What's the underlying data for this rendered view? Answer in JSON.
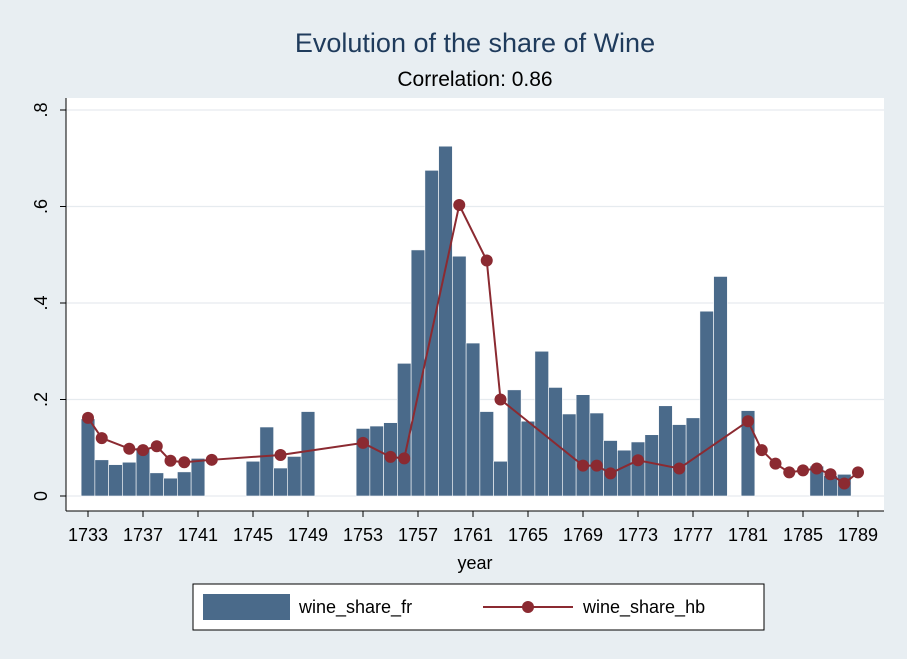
{
  "chart_data": {
    "type": "bar+line",
    "title": "Evolution of the share of Wine",
    "subtitle": "Correlation: 0.86",
    "xlabel": "year",
    "ylabel": "",
    "xlim": [
      1733,
      1789
    ],
    "ylim": [
      0,
      0.8
    ],
    "x_ticks": [
      1733,
      1737,
      1741,
      1745,
      1749,
      1753,
      1757,
      1761,
      1765,
      1769,
      1773,
      1777,
      1781,
      1785,
      1789
    ],
    "y_ticks": [
      0,
      0.2,
      0.4,
      0.6,
      0.8
    ],
    "y_tick_labels": [
      "0",
      ".2",
      ".4",
      ".6",
      ".8"
    ],
    "grid": true,
    "legend_position": "bottom",
    "series": [
      {
        "name": "wine_share_fr",
        "type": "bar",
        "color": "#4a6a8a",
        "points": [
          {
            "x": 1733,
            "y": 0.16
          },
          {
            "x": 1734,
            "y": 0.075
          },
          {
            "x": 1735,
            "y": 0.065
          },
          {
            "x": 1736,
            "y": 0.07
          },
          {
            "x": 1737,
            "y": 0.1
          },
          {
            "x": 1738,
            "y": 0.048
          },
          {
            "x": 1739,
            "y": 0.037
          },
          {
            "x": 1740,
            "y": 0.05
          },
          {
            "x": 1741,
            "y": 0.078
          },
          {
            "x": 1745,
            "y": 0.072
          },
          {
            "x": 1746,
            "y": 0.143
          },
          {
            "x": 1747,
            "y": 0.058
          },
          {
            "x": 1748,
            "y": 0.082
          },
          {
            "x": 1749,
            "y": 0.175
          },
          {
            "x": 1753,
            "y": 0.14
          },
          {
            "x": 1754,
            "y": 0.145
          },
          {
            "x": 1755,
            "y": 0.152
          },
          {
            "x": 1756,
            "y": 0.275
          },
          {
            "x": 1757,
            "y": 0.51
          },
          {
            "x": 1758,
            "y": 0.675
          },
          {
            "x": 1759,
            "y": 0.725
          },
          {
            "x": 1760,
            "y": 0.497
          },
          {
            "x": 1761,
            "y": 0.317
          },
          {
            "x": 1762,
            "y": 0.175
          },
          {
            "x": 1763,
            "y": 0.072
          },
          {
            "x": 1764,
            "y": 0.22
          },
          {
            "x": 1765,
            "y": 0.155
          },
          {
            "x": 1766,
            "y": 0.3
          },
          {
            "x": 1767,
            "y": 0.225
          },
          {
            "x": 1768,
            "y": 0.17
          },
          {
            "x": 1769,
            "y": 0.21
          },
          {
            "x": 1770,
            "y": 0.172
          },
          {
            "x": 1771,
            "y": 0.115
          },
          {
            "x": 1772,
            "y": 0.095
          },
          {
            "x": 1773,
            "y": 0.112
          },
          {
            "x": 1774,
            "y": 0.127
          },
          {
            "x": 1775,
            "y": 0.187
          },
          {
            "x": 1776,
            "y": 0.148
          },
          {
            "x": 1777,
            "y": 0.162
          },
          {
            "x": 1778,
            "y": 0.383
          },
          {
            "x": 1779,
            "y": 0.455
          },
          {
            "x": 1781,
            "y": 0.177
          },
          {
            "x": 1786,
            "y": 0.062
          },
          {
            "x": 1787,
            "y": 0.042
          },
          {
            "x": 1788,
            "y": 0.045
          }
        ]
      },
      {
        "name": "wine_share_hb",
        "type": "line",
        "color": "#8b2a31",
        "points": [
          {
            "x": 1733,
            "y": 0.162
          },
          {
            "x": 1734,
            "y": 0.12
          },
          {
            "x": 1736,
            "y": 0.098
          },
          {
            "x": 1737,
            "y": 0.095
          },
          {
            "x": 1738,
            "y": 0.103
          },
          {
            "x": 1739,
            "y": 0.073
          },
          {
            "x": 1740,
            "y": 0.07
          },
          {
            "x": 1742,
            "y": 0.075
          },
          {
            "x": 1747,
            "y": 0.085
          },
          {
            "x": 1753,
            "y": 0.11
          },
          {
            "x": 1755,
            "y": 0.081
          },
          {
            "x": 1756,
            "y": 0.078
          },
          {
            "x": 1760,
            "y": 0.603
          },
          {
            "x": 1762,
            "y": 0.488
          },
          {
            "x": 1763,
            "y": 0.2
          },
          {
            "x": 1769,
            "y": 0.063
          },
          {
            "x": 1770,
            "y": 0.063
          },
          {
            "x": 1771,
            "y": 0.047
          },
          {
            "x": 1773,
            "y": 0.074
          },
          {
            "x": 1776,
            "y": 0.057
          },
          {
            "x": 1781,
            "y": 0.155
          },
          {
            "x": 1782,
            "y": 0.095
          },
          {
            "x": 1783,
            "y": 0.067
          },
          {
            "x": 1784,
            "y": 0.049
          },
          {
            "x": 1785,
            "y": 0.053
          },
          {
            "x": 1786,
            "y": 0.057
          },
          {
            "x": 1787,
            "y": 0.045
          },
          {
            "x": 1788,
            "y": 0.026
          },
          {
            "x": 1789,
            "y": 0.049
          }
        ]
      }
    ]
  }
}
